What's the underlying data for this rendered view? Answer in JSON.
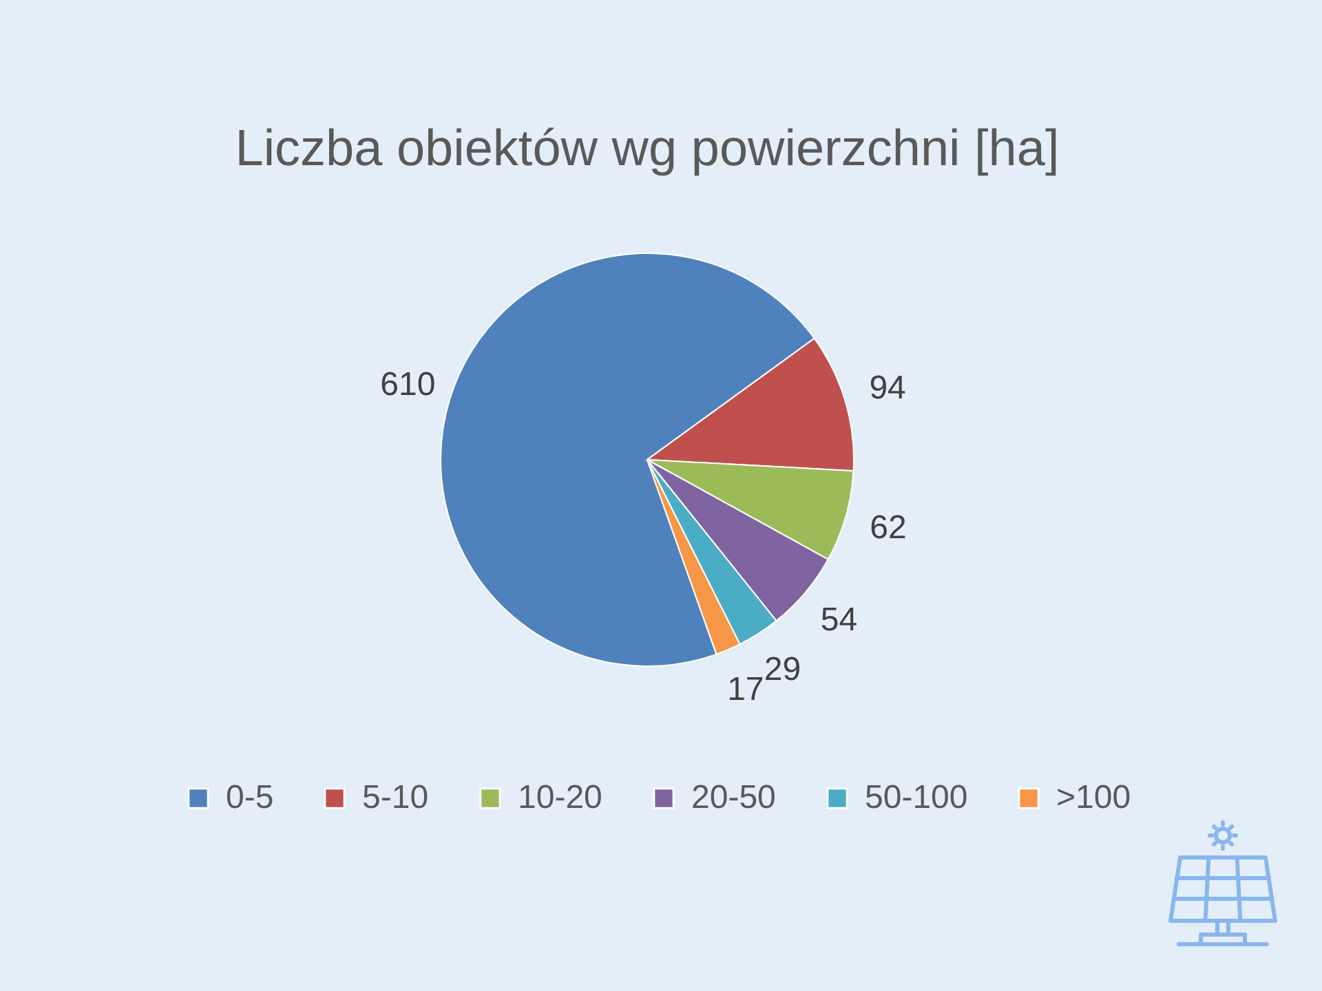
{
  "chart_data": {
    "type": "pie",
    "title": "Liczba obiektów wg powierzchni [ha]",
    "categories": [
      "0-5",
      "5-10",
      "10-20",
      "20-50",
      "50-100",
      ">100"
    ],
    "values": [
      610,
      94,
      62,
      54,
      29,
      17
    ],
    "colors": [
      "#4f81bd",
      "#c0504d",
      "#9bbb59",
      "#8064a2",
      "#4bacc6",
      "#f79646"
    ],
    "data_labels": true,
    "legend": "bottom"
  }
}
